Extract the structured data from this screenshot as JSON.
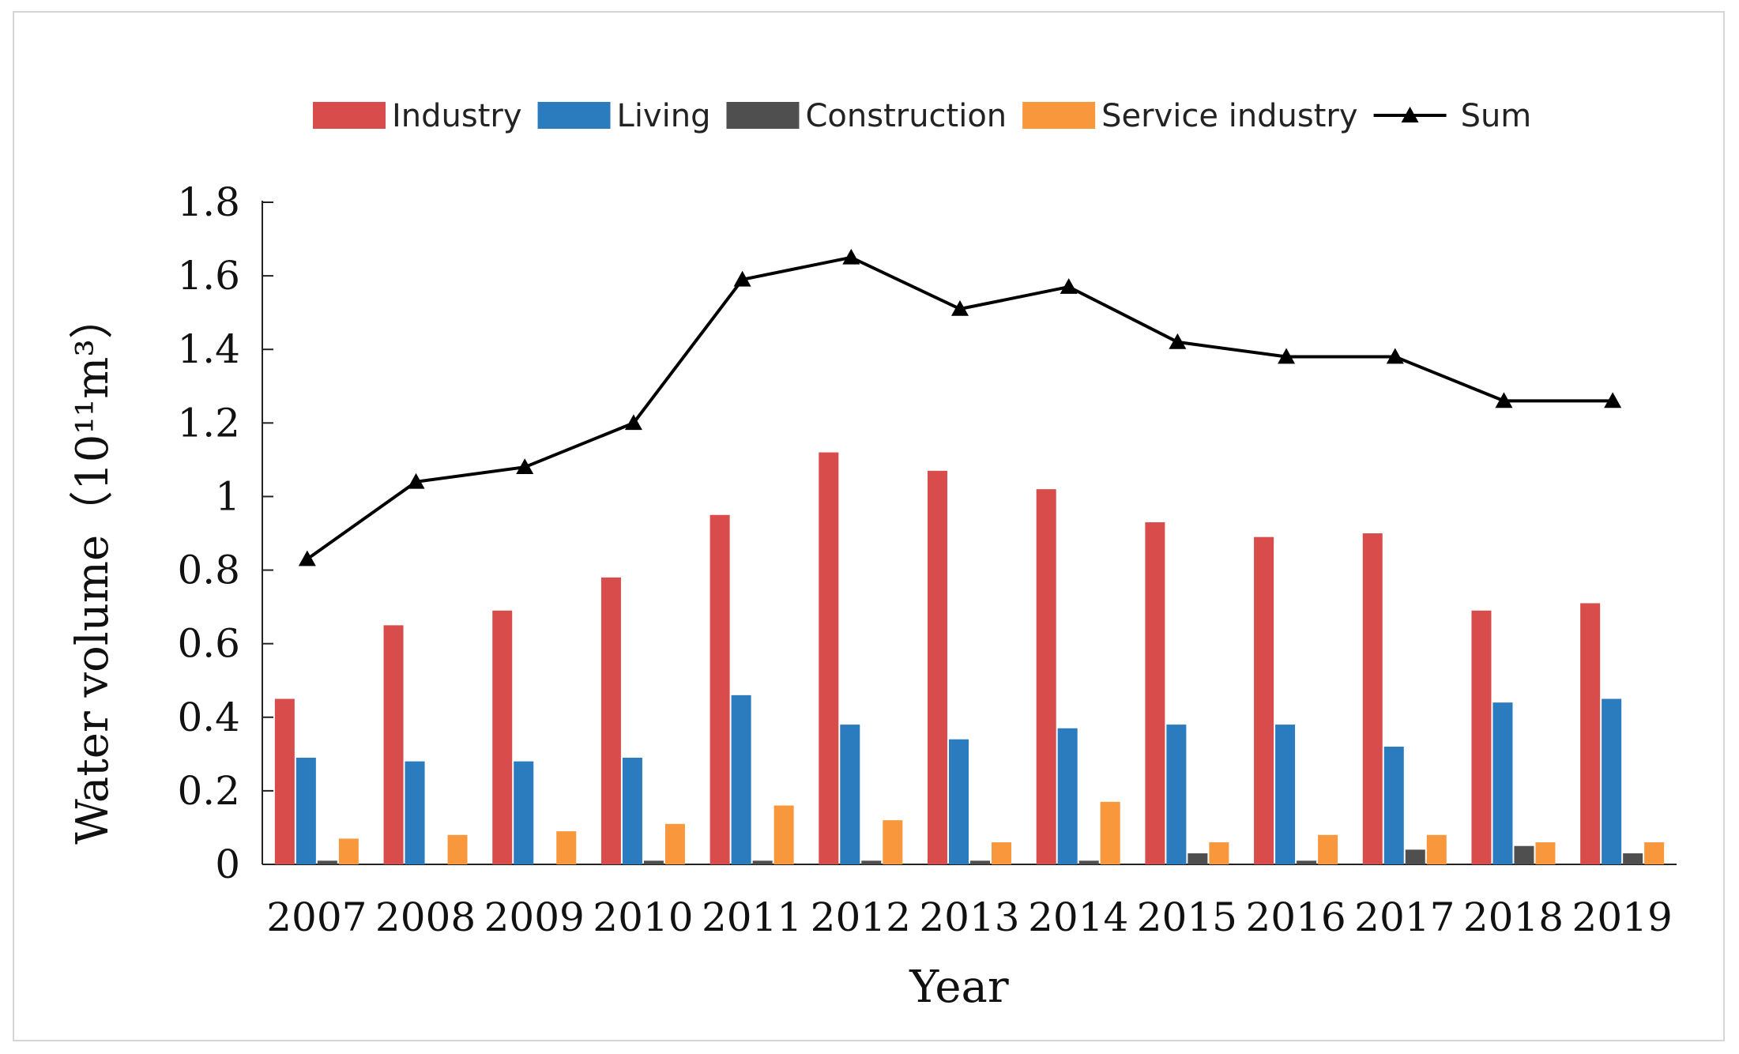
{
  "chart_data": {
    "type": "bar",
    "title": "",
    "xlabel": "Year",
    "ylabel": "Water volume（10¹¹m³）",
    "ylim": [
      0,
      1.8
    ],
    "yticks": [
      "0",
      "0.2",
      "0.4",
      "0.6",
      "0.8",
      "1",
      "1.2",
      "1.4",
      "1.6",
      "1.8"
    ],
    "categories": [
      "2007",
      "2008",
      "2009",
      "2010",
      "2011",
      "2012",
      "2013",
      "2014",
      "2015",
      "2016",
      "2017",
      "2018",
      "2019"
    ],
    "series": [
      {
        "name": "Industry",
        "kind": "bar",
        "color": "#d94c4c",
        "values": [
          0.45,
          0.65,
          0.69,
          0.78,
          0.95,
          1.12,
          1.07,
          1.02,
          0.93,
          0.89,
          0.9,
          0.69,
          0.71
        ]
      },
      {
        "name": "Living",
        "kind": "bar",
        "color": "#2b7bbf",
        "values": [
          0.29,
          0.28,
          0.28,
          0.29,
          0.46,
          0.38,
          0.34,
          0.37,
          0.38,
          0.38,
          0.32,
          0.44,
          0.45
        ]
      },
      {
        "name": "Construction",
        "kind": "bar",
        "color": "#4f4f4f",
        "values": [
          0.01,
          0.0,
          0.0,
          0.01,
          0.01,
          0.01,
          0.01,
          0.01,
          0.03,
          0.01,
          0.04,
          0.05,
          0.03
        ]
      },
      {
        "name": "Service industry",
        "kind": "bar",
        "color": "#f9973d",
        "values": [
          0.07,
          0.08,
          0.09,
          0.11,
          0.16,
          0.12,
          0.06,
          0.17,
          0.06,
          0.08,
          0.08,
          0.06,
          0.06
        ]
      },
      {
        "name": "Sum",
        "kind": "line",
        "color": "#000000",
        "values": [
          0.83,
          1.04,
          1.08,
          1.2,
          1.59,
          1.65,
          1.51,
          1.57,
          1.42,
          1.38,
          1.38,
          1.26,
          1.26
        ]
      }
    ],
    "legend_position": "top-center"
  }
}
